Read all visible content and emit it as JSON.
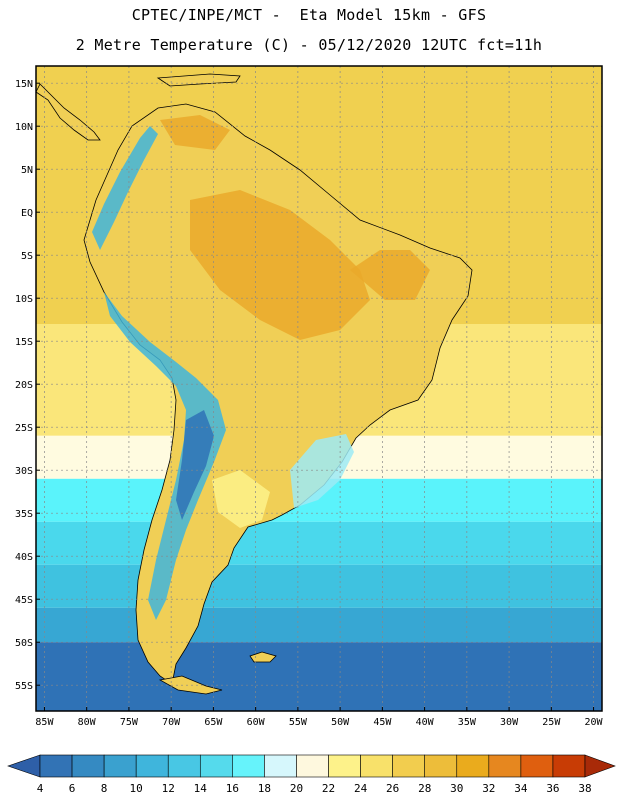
{
  "title": {
    "line1": "CPTEC/INPE/MCT -  Eta Model 15km - GFS",
    "line2": "2 Metre Temperature (C) - 05/12/2020 12UTC fct=11h"
  },
  "map": {
    "lon_range": [
      -86,
      -19
    ],
    "lat_range": [
      -58,
      17
    ],
    "lat_ticks": [
      {
        "value": 15,
        "label": "15N"
      },
      {
        "value": 10,
        "label": "10N"
      },
      {
        "value": 5,
        "label": "5N"
      },
      {
        "value": 0,
        "label": "EQ"
      },
      {
        "value": -5,
        "label": "5S"
      },
      {
        "value": -10,
        "label": "10S"
      },
      {
        "value": -15,
        "label": "15S"
      },
      {
        "value": -20,
        "label": "20S"
      },
      {
        "value": -25,
        "label": "25S"
      },
      {
        "value": -30,
        "label": "30S"
      },
      {
        "value": -35,
        "label": "35S"
      },
      {
        "value": -40,
        "label": "40S"
      },
      {
        "value": -45,
        "label": "45S"
      },
      {
        "value": -50,
        "label": "50S"
      },
      {
        "value": -55,
        "label": "55S"
      }
    ],
    "lon_ticks": [
      {
        "value": -85,
        "label": "85W"
      },
      {
        "value": -80,
        "label": "80W"
      },
      {
        "value": -75,
        "label": "75W"
      },
      {
        "value": -70,
        "label": "70W"
      },
      {
        "value": -65,
        "label": "65W"
      },
      {
        "value": -60,
        "label": "60W"
      },
      {
        "value": -55,
        "label": "55W"
      },
      {
        "value": -50,
        "label": "50W"
      },
      {
        "value": -45,
        "label": "45W"
      },
      {
        "value": -40,
        "label": "40W"
      },
      {
        "value": -35,
        "label": "35W"
      },
      {
        "value": -30,
        "label": "30W"
      },
      {
        "value": -25,
        "label": "25W"
      },
      {
        "value": -20,
        "label": "20W"
      }
    ],
    "ocean_bands": [
      {
        "lat_top": 17,
        "lat_bottom": -13,
        "color": "#f0d050"
      },
      {
        "lat_top": -13,
        "lat_bottom": -26,
        "color": "#fae67a"
      },
      {
        "lat_top": -26,
        "lat_bottom": -31,
        "color": "#fffbe0"
      },
      {
        "lat_top": -31,
        "lat_bottom": -36,
        "color": "#5af3fb"
      },
      {
        "lat_top": -36,
        "lat_bottom": -41,
        "color": "#4ad8ec"
      },
      {
        "lat_top": -41,
        "lat_bottom": -46,
        "color": "#3fc2e0"
      },
      {
        "lat_top": -46,
        "lat_bottom": -50,
        "color": "#37a7d3"
      },
      {
        "lat_top": -50,
        "lat_bottom": -58,
        "color": "#2f72b6"
      }
    ],
    "land_color": "#f0cf56",
    "land_hot_color": "#eaa92a",
    "andes_color": "#3fb5dc"
  },
  "colorbar": {
    "labels": [
      "4",
      "6",
      "8",
      "10",
      "12",
      "14",
      "16",
      "18",
      "20",
      "22",
      "24",
      "26",
      "28",
      "30",
      "32",
      "34",
      "36",
      "38"
    ],
    "colors": [
      "#3273b5",
      "#358ac2",
      "#3aa1cf",
      "#3fb5dc",
      "#48c7e4",
      "#55daec",
      "#66f3fb",
      "#d6f7fc",
      "#fef8de",
      "#fdf28a",
      "#f8e16a",
      "#f2cd4e",
      "#edbd3a",
      "#eaab1d",
      "#e6871f",
      "#df5f0f",
      "#c83c05"
    ],
    "under_color": "#2e5fa8",
    "over_color": "#a82a08"
  }
}
